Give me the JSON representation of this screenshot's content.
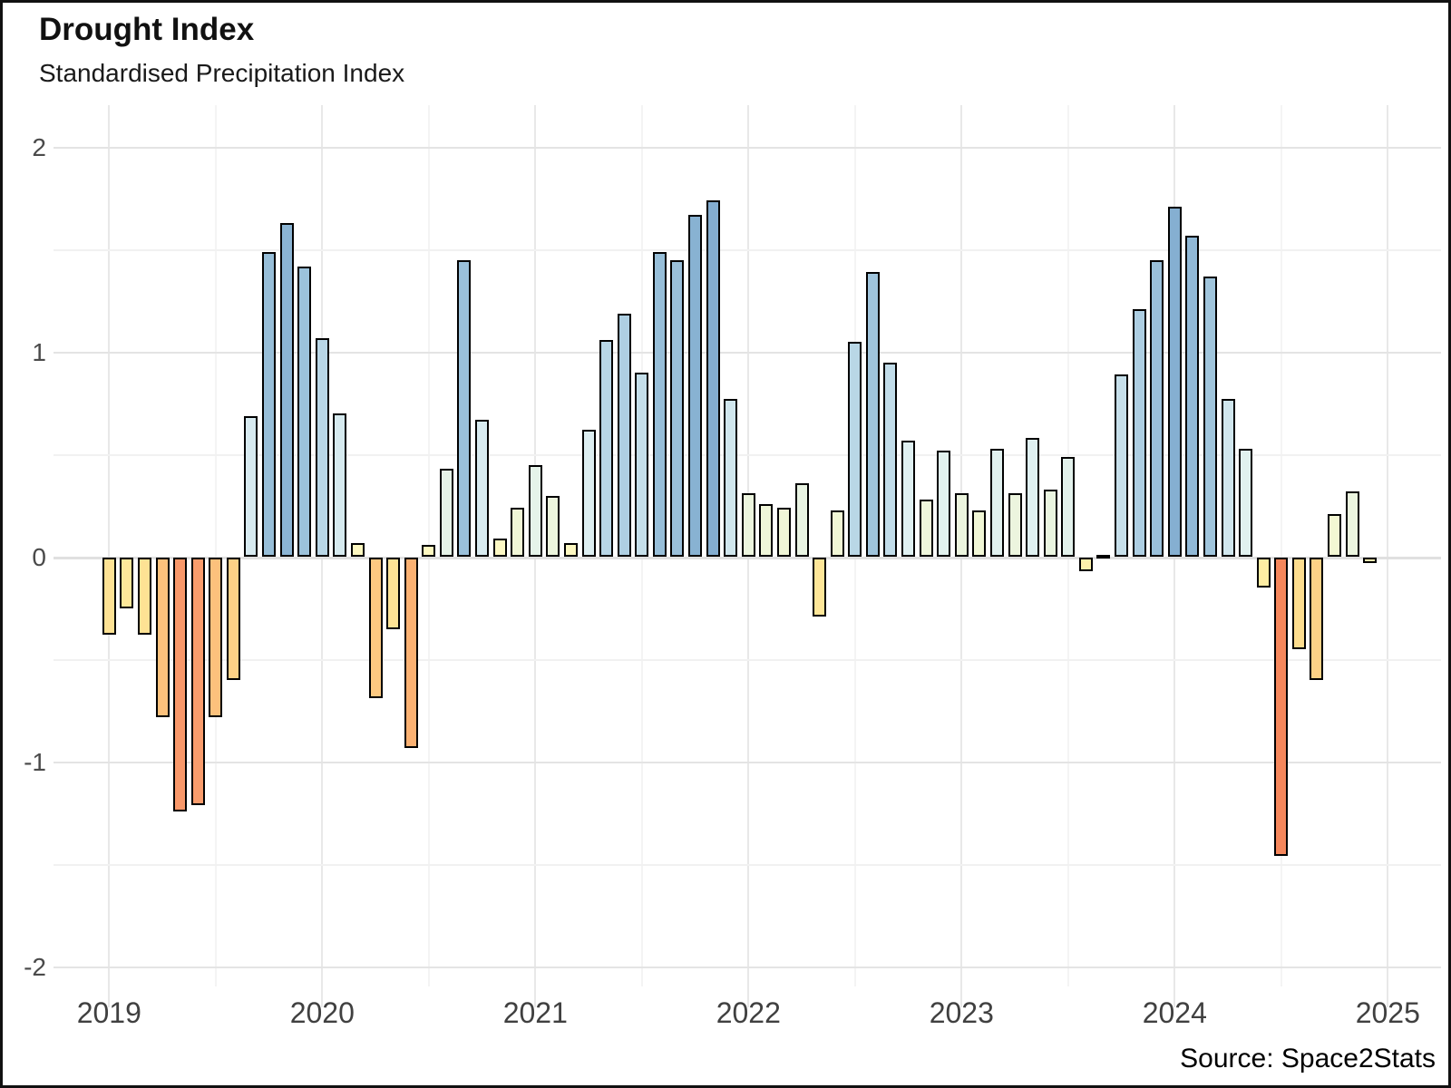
{
  "header": {
    "title": "Drought Index",
    "subtitle": "Standardised Precipitation Index"
  },
  "footer": {
    "source": "Source: Space2Stats"
  },
  "chart_data": {
    "type": "bar",
    "title": "Drought Index",
    "subtitle": "Standardised Precipitation Index",
    "xlabel": "",
    "ylabel": "",
    "ylim": [
      -2.1,
      2.2
    ],
    "grid": "major and minor gridlines, light gray, minimal theme",
    "legend": "none",
    "y_axis": {
      "ticks": [
        2,
        1,
        0,
        -1,
        -2
      ],
      "labels": [
        "2",
        "1",
        "0",
        "-1",
        "-2"
      ],
      "minor_ticks": [
        1.5,
        0.5,
        -0.5,
        -1.5
      ]
    },
    "x_axis": {
      "year_ticks": [
        2019,
        2020,
        2021,
        2022,
        2023,
        2024,
        2025
      ],
      "labels": [
        "2019",
        "2020",
        "2021",
        "2022",
        "2023",
        "2024",
        "2025"
      ]
    },
    "palette_note": "diverging red-yellow-blue scale: orange = drought (negative SPI), blue = wet (positive SPI)",
    "months": [
      "2019-01",
      "2019-02",
      "2019-03",
      "2019-04",
      "2019-05",
      "2019-06",
      "2019-07",
      "2019-08",
      "2019-09",
      "2019-10",
      "2019-11",
      "2019-12",
      "2020-01",
      "2020-02",
      "2020-03",
      "2020-04",
      "2020-05",
      "2020-06",
      "2020-07",
      "2020-08",
      "2020-09",
      "2020-10",
      "2020-11",
      "2020-12",
      "2021-01",
      "2021-02",
      "2021-03",
      "2021-04",
      "2021-05",
      "2021-06",
      "2021-07",
      "2021-08",
      "2021-09",
      "2021-10",
      "2021-11",
      "2021-12",
      "2022-01",
      "2022-02",
      "2022-03",
      "2022-04",
      "2022-05",
      "2022-06",
      "2022-07",
      "2022-08",
      "2022-09",
      "2022-10",
      "2022-11",
      "2022-12",
      "2023-01",
      "2023-02",
      "2023-03",
      "2023-04",
      "2023-05",
      "2023-06",
      "2023-07",
      "2023-08",
      "2023-09",
      "2023-10",
      "2023-11",
      "2023-12",
      "2024-01",
      "2024-02",
      "2024-03",
      "2024-04",
      "2024-05",
      "2024-06",
      "2024-07",
      "2024-08",
      "2024-09",
      "2024-10",
      "2024-11",
      "2024-12"
    ],
    "values": [
      -0.38,
      -0.25,
      -0.38,
      -0.78,
      -1.24,
      -1.21,
      -0.78,
      -0.6,
      0.69,
      1.49,
      1.63,
      1.42,
      1.07,
      0.7,
      0.07,
      -0.69,
      -0.35,
      -0.93,
      0.06,
      0.43,
      1.45,
      0.67,
      0.09,
      0.24,
      0.45,
      0.3,
      0.07,
      0.62,
      1.06,
      1.19,
      0.9,
      1.49,
      1.45,
      1.67,
      1.74,
      0.77,
      0.31,
      0.26,
      0.24,
      0.36,
      -0.29,
      0.23,
      1.05,
      1.39,
      0.95,
      0.57,
      0.28,
      0.52,
      0.31,
      0.23,
      0.53,
      0.31,
      0.58,
      0.33,
      0.49,
      -0.07,
      0.0,
      0.89,
      1.21,
      1.45,
      1.71,
      1.57,
      1.37,
      0.77,
      0.53,
      -0.15,
      -1.46,
      -0.45,
      -0.6,
      0.21,
      0.32,
      -0.03
    ],
    "colors": [
      "#FEE294",
      "#FEE89A",
      "#FEE294",
      "#FCC17C",
      "#F8986A",
      "#F99C6C",
      "#FCC17C",
      "#FDD186",
      "#D7EAF0",
      "#97BED8",
      "#8BB4D3",
      "#9CC2DB",
      "#B8D6E6",
      "#D6EAEF",
      "#FDF8C1",
      "#FDC981",
      "#FEE395",
      "#FBB172",
      "#FDF8C0",
      "#E6F3E8",
      "#9AC0DA",
      "#D8EBF0",
      "#FCF8C4",
      "#F0F6D7",
      "#E5F3E9",
      "#ECF5DD",
      "#FDF8C1",
      "#DCEEF1",
      "#B8D6E6",
      "#AECFE2",
      "#C5DFEA",
      "#97BED8",
      "#9AC0DA",
      "#88B2D2",
      "#83ADD0",
      "#D0E6ED",
      "#ECF5DE",
      "#EFF6D9",
      "#F0F6D7",
      "#E9F4E3",
      "#FEE698",
      "#F1F7D6",
      "#B9D7E6",
      "#9FC4DC",
      "#C1DCE9",
      "#DFF0F1",
      "#EEF6DB",
      "#E2F2EE",
      "#ECF5DE",
      "#F1F7D6",
      "#E1F1EF",
      "#ECF5DE",
      "#DFF0F1",
      "#EAF5E0",
      "#E3F2EC",
      "#FEF1AB",
      "#FEF7B9",
      "#C6DFEA",
      "#ADCEE2",
      "#9AC0DA",
      "#85AFD1",
      "#90B8D6",
      "#A0C5DC",
      "#D0E6ED",
      "#E1F1EF",
      "#FEEDA3",
      "#F5875C",
      "#FDDD8E",
      "#FDD186",
      "#F3F7D3",
      "#EBF5DF",
      "#FEF3B0"
    ],
    "grid_colors": {
      "major": "#E4E4E4",
      "minor": "#F1F1F1",
      "zero_line": "#E0E0E0",
      "bar_stroke": "#000000"
    }
  }
}
